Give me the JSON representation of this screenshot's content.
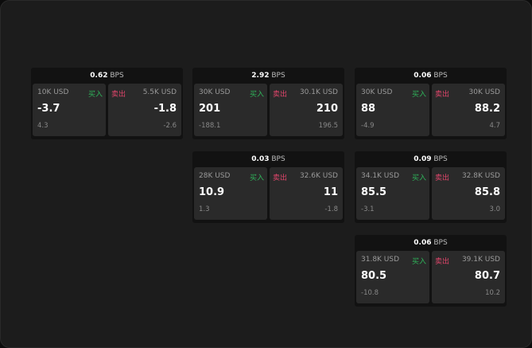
{
  "colors": {
    "buy": "#2fb45a",
    "sell": "#e0456b"
  },
  "unit": "BPS",
  "buy_label": "买入",
  "sell_label": "卖出",
  "cards": [
    {
      "spread": "0.62",
      "bid": {
        "qty": "10K USD",
        "price": "-3.7",
        "change": "4.3"
      },
      "ask": {
        "qty": "5.5K USD",
        "price": "-1.8",
        "change": "-2.6"
      }
    },
    {
      "spread": "2.92",
      "bid": {
        "qty": "30K USD",
        "price": "201",
        "change": "-188.1"
      },
      "ask": {
        "qty": "30.1K USD",
        "price": "210",
        "change": "196.5"
      }
    },
    {
      "spread": "0.06",
      "bid": {
        "qty": "30K USD",
        "price": "88",
        "change": "-4.9"
      },
      "ask": {
        "qty": "30K USD",
        "price": "88.2",
        "change": "4.7"
      }
    },
    {
      "spread": "0.03",
      "bid": {
        "qty": "28K USD",
        "price": "10.9",
        "change": "1.3"
      },
      "ask": {
        "qty": "32.6K USD",
        "price": "11",
        "change": "-1.8"
      }
    },
    {
      "spread": "0.09",
      "bid": {
        "qty": "34.1K USD",
        "price": "85.5",
        "change": "-3.1"
      },
      "ask": {
        "qty": "32.8K USD",
        "price": "85.8",
        "change": "3.0"
      }
    },
    {
      "spread": "0.06",
      "bid": {
        "qty": "31.8K USD",
        "price": "80.5",
        "change": "-10.8"
      },
      "ask": {
        "qty": "39.1K USD",
        "price": "80.7",
        "change": "10.2"
      }
    }
  ]
}
